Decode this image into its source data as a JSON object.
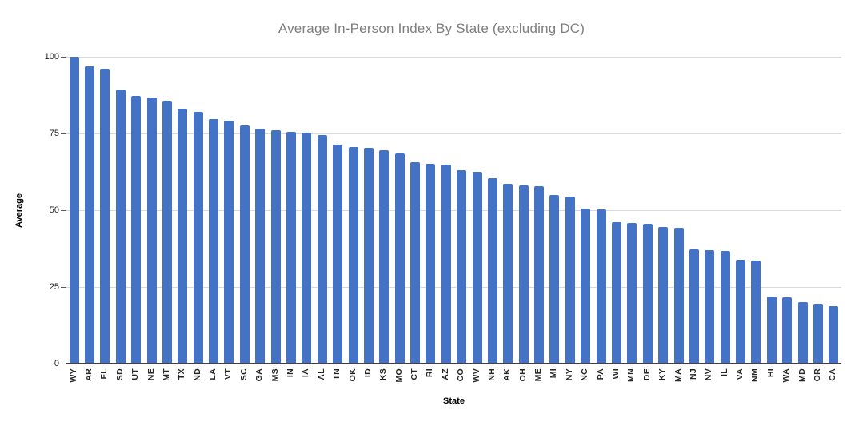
{
  "title": "Average In-Person Index By State (excluding DC)",
  "chart_data": {
    "type": "bar",
    "title": "Average In-Person Index By State (excluding DC)",
    "xlabel": "State",
    "ylabel": "Average",
    "ylim": [
      0,
      100
    ],
    "yticks": [
      0,
      25,
      50,
      75,
      100
    ],
    "grid": true,
    "legend": "none",
    "bar_color": "#4472c4",
    "gridline_color": "#d9d9d9",
    "title_color": "#7f7f7f",
    "categories": [
      "WY",
      "AR",
      "FL",
      "SD",
      "UT",
      "NE",
      "MT",
      "TX",
      "ND",
      "LA",
      "VT",
      "SC",
      "GA",
      "MS",
      "IN",
      "IA",
      "AL",
      "TN",
      "OK",
      "ID",
      "KS",
      "MO",
      "CT",
      "RI",
      "AZ",
      "CO",
      "WV",
      "NH",
      "AK",
      "OH",
      "ME",
      "MI",
      "NY",
      "NC",
      "PA",
      "WI",
      "MN",
      "DE",
      "KY",
      "MA",
      "NJ",
      "NV",
      "IL",
      "VA",
      "NM",
      "HI",
      "WA",
      "MD",
      "OR",
      "CA"
    ],
    "values": [
      100,
      96.8,
      96.1,
      89.3,
      87.2,
      86.8,
      85.6,
      83.1,
      82.0,
      79.8,
      79.2,
      77.5,
      76.6,
      76.1,
      75.6,
      75.2,
      74.6,
      71.4,
      70.6,
      70.4,
      69.6,
      68.4,
      65.5,
      65.1,
      64.8,
      62.9,
      62.5,
      60.3,
      58.6,
      58.0,
      57.7,
      55.0,
      54.5,
      50.5,
      50.3,
      46.2,
      45.8,
      45.6,
      44.5,
      44.3,
      37.3,
      36.9,
      36.6,
      33.9,
      33.7,
      22.0,
      21.7,
      20.0,
      19.5,
      18.7
    ]
  }
}
